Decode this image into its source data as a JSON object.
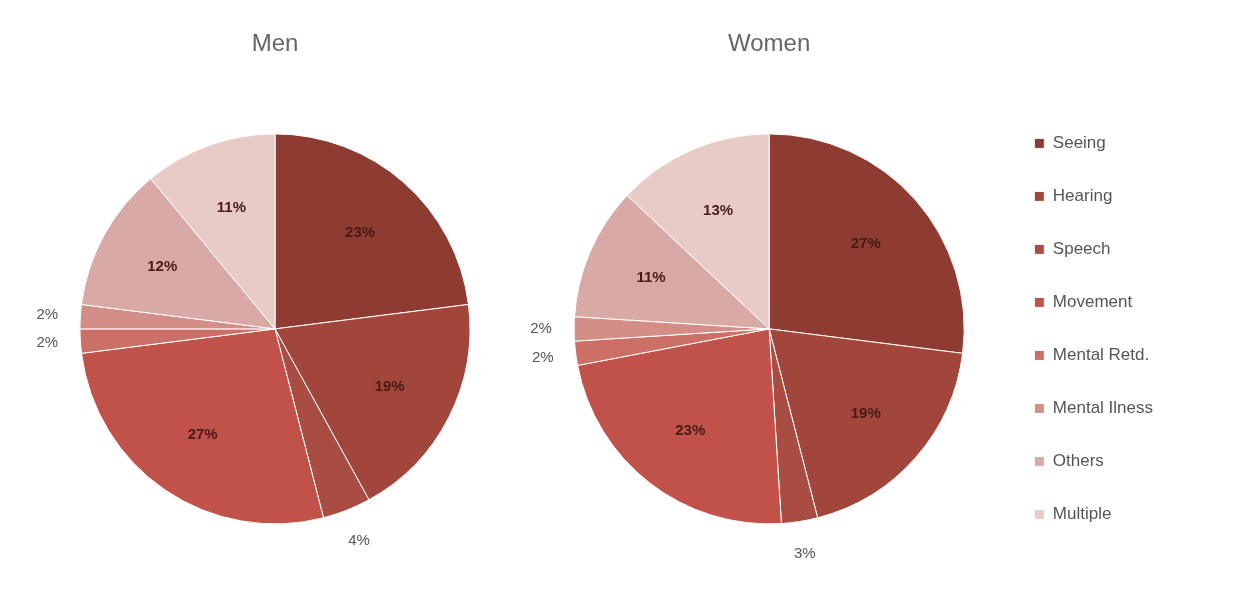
{
  "chart_data": {
    "type": "pie",
    "categories": [
      "Seeing",
      "Hearing",
      "Speech",
      "Movement",
      "Mental Retd.",
      "Mental Ilness",
      "Others",
      "Multiple"
    ],
    "colors": [
      "#8e3b32",
      "#a2463b",
      "#a94c42",
      "#c0524a",
      "#cc6f66",
      "#d38e88",
      "#d9a9a5",
      "#e8cbc7"
    ],
    "legend": "right",
    "series": [
      {
        "name": "Men",
        "values": [
          23,
          19,
          4,
          27,
          2,
          2,
          12,
          11
        ],
        "value_labels": [
          "23%",
          "19%",
          "4%",
          "27%",
          "2%",
          "2%",
          "12%",
          "11%"
        ]
      },
      {
        "name": "Women",
        "values": [
          27,
          19,
          3,
          23,
          2,
          2,
          11,
          13
        ],
        "value_labels": [
          "27%",
          "19%",
          "3%",
          "23%",
          "2%",
          "2%",
          "11%",
          "13%"
        ]
      }
    ]
  }
}
